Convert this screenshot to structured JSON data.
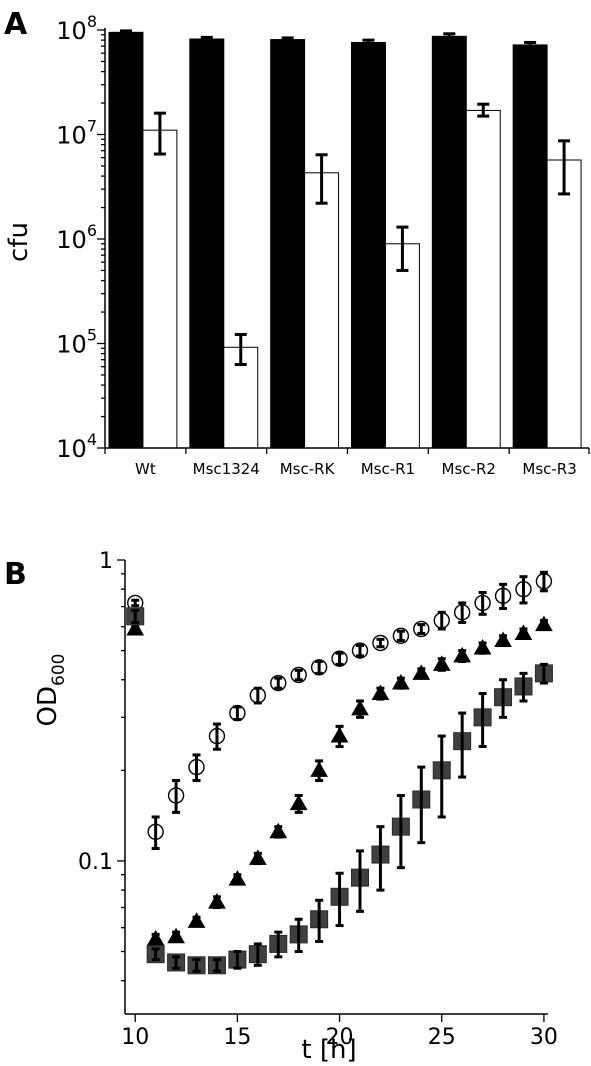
{
  "panel_labels": [
    "A",
    "B"
  ],
  "chart_data": [
    {
      "type": "bar",
      "panel": "A",
      "ylabel": "cfu",
      "yscale": "log",
      "ylim": [
        10000,
        100000000
      ],
      "ytick_labels": [
        {
          "base": "10",
          "exp": "4",
          "value": 10000
        },
        {
          "base": "10",
          "exp": "5",
          "value": 100000
        },
        {
          "base": "10",
          "exp": "6",
          "value": 1000000
        },
        {
          "base": "10",
          "exp": "7",
          "value": 10000000
        },
        {
          "base": "10",
          "exp": "8",
          "value": 100000000
        }
      ],
      "categories": [
        "Wt",
        "Msc1324",
        "Msc-RK",
        "Msc-R1",
        "Msc-R2",
        "Msc-R3"
      ],
      "series": [
        {
          "color": "#000000",
          "values": [
            95000000,
            82000000,
            81000000,
            76000000,
            87000000,
            72000000
          ],
          "err_low": [
            92000000,
            80000000,
            78000000,
            73000000,
            83000000,
            69000000
          ],
          "err_high": [
            98000000,
            85000000,
            84000000,
            80000000,
            92000000,
            76000000
          ]
        },
        {
          "color": "#ffffff",
          "values": [
            11000000,
            92000,
            4300000,
            900000,
            17000000,
            5700000
          ],
          "err_low": [
            6500000,
            63000,
            2200000,
            500000,
            15000000,
            2700000
          ],
          "err_high": [
            16000000,
            122000,
            6400000,
            1300000,
            19500000,
            8700000
          ]
        }
      ],
      "grid": false,
      "legend": "none"
    },
    {
      "type": "scatter",
      "panel": "B",
      "xlabel": "t [h]",
      "ylabel_main": "OD",
      "ylabel_sub": "600",
      "yscale": "log",
      "xlim": [
        9.5,
        30.2
      ],
      "ylim": [
        0.031,
        1.0
      ],
      "xtick_values": [
        10,
        15,
        20,
        25,
        30
      ],
      "xtick_labels": [
        "10",
        "15",
        "20",
        "25",
        "30"
      ],
      "ytick_values": [
        0.1,
        1
      ],
      "ytick_labels": [
        "0.1",
        "1"
      ],
      "series": [
        {
          "marker": "circle-open",
          "x": [
            10,
            11,
            12,
            13,
            14,
            15,
            16,
            17,
            18,
            19,
            20,
            21,
            22,
            23,
            24,
            25,
            26,
            27,
            28,
            29,
            30
          ],
          "y": [
            0.72,
            0.125,
            0.165,
            0.205,
            0.26,
            0.31,
            0.355,
            0.39,
            0.415,
            0.44,
            0.47,
            0.5,
            0.53,
            0.56,
            0.59,
            0.63,
            0.67,
            0.72,
            0.76,
            0.8,
            0.85
          ],
          "err": [
            0.015,
            0.015,
            0.02,
            0.02,
            0.025,
            0.015,
            0.02,
            0.015,
            0.015,
            0.02,
            0.02,
            0.02,
            0.015,
            0.02,
            0.02,
            0.04,
            0.05,
            0.06,
            0.07,
            0.08,
            0.06
          ]
        },
        {
          "marker": "triangle-filled",
          "x": [
            10,
            11,
            12,
            13,
            14,
            15,
            16,
            17,
            18,
            19,
            20,
            21,
            22,
            23,
            24,
            25,
            26,
            27,
            28,
            29,
            30
          ],
          "y": [
            0.59,
            0.055,
            0.056,
            0.063,
            0.073,
            0.087,
            0.102,
            0.125,
            0.155,
            0.2,
            0.26,
            0.32,
            0.36,
            0.39,
            0.42,
            0.45,
            0.48,
            0.51,
            0.54,
            0.57,
            0.61
          ],
          "err": [
            0.01,
            0.002,
            0.002,
            0.002,
            0.003,
            0.003,
            0.004,
            0.005,
            0.01,
            0.015,
            0.02,
            0.02,
            0.015,
            0.015,
            0.015,
            0.02,
            0.02,
            0.02,
            0.02,
            0.02,
            0.02
          ]
        },
        {
          "marker": "square-filled",
          "x": [
            10,
            11,
            12,
            13,
            14,
            15,
            16,
            17,
            18,
            19,
            20,
            21,
            22,
            23,
            24,
            25,
            26,
            27,
            28,
            29,
            30
          ],
          "y": [
            0.65,
            0.049,
            0.046,
            0.045,
            0.045,
            0.047,
            0.049,
            0.053,
            0.057,
            0.064,
            0.076,
            0.088,
            0.105,
            0.13,
            0.16,
            0.2,
            0.25,
            0.3,
            0.35,
            0.38,
            0.42
          ],
          "err": [
            0.03,
            0.002,
            0.002,
            0.002,
            0.002,
            0.003,
            0.004,
            0.005,
            0.007,
            0.01,
            0.015,
            0.02,
            0.025,
            0.035,
            0.045,
            0.06,
            0.06,
            0.06,
            0.05,
            0.04,
            0.03
          ]
        }
      ],
      "grid": false,
      "legend": "none"
    }
  ]
}
